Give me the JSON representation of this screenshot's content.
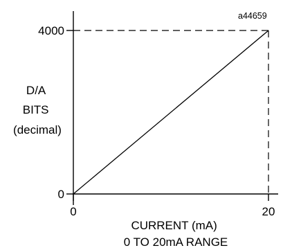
{
  "figure_id": "a44659",
  "ylabel_lines": [
    "D/A",
    "BITS",
    "(decimal)"
  ],
  "xlabel_lines": [
    "CURRENT (mA)",
    "0 TO 20mA RANGE"
  ],
  "chart_data": {
    "type": "line",
    "x": [
      0,
      20
    ],
    "series": [
      {
        "values": [
          0,
          4000
        ]
      }
    ],
    "xticks": [
      "0",
      "20"
    ],
    "yticks": [
      "0",
      "4000"
    ],
    "xlim": [
      0,
      20
    ],
    "ylim": [
      0,
      4000
    ],
    "reference_lines": "dashed lines from the x=20 and y=4000 axis values to the endpoint",
    "grid": false
  }
}
